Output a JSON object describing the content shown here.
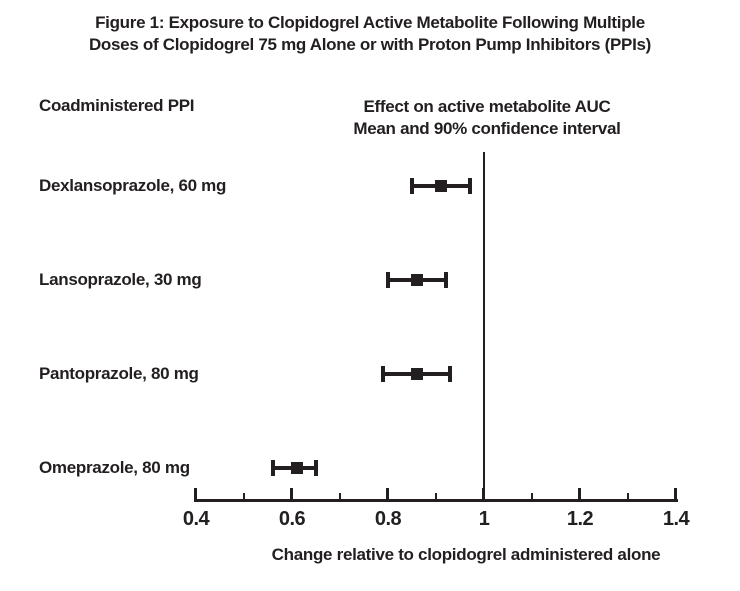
{
  "title": {
    "line1": "Figure 1: Exposure to Clopidogrel Active Metabolite Following Multiple",
    "line2": "Doses of Clopidogrel 75 mg Alone or with Proton Pump Inhibitors (PPIs)"
  },
  "column_headers": {
    "left": "Coadministered PPI",
    "right_line1": "Effect on active metabolite AUC",
    "right_line2": "Mean and 90% confidence interval"
  },
  "chart_data": {
    "type": "scatter",
    "subtype": "forest-plot",
    "categories": [
      "Dexlansoprazole, 60 mg",
      "Lansoprazole, 30 mg",
      "Pantoprazole, 80 mg",
      "Omeprazole, 80 mg"
    ],
    "means": [
      0.91,
      0.86,
      0.86,
      0.61
    ],
    "ci_low": [
      0.85,
      0.8,
      0.79,
      0.56
    ],
    "ci_high": [
      0.97,
      0.92,
      0.93,
      0.65
    ],
    "confidence_level": "90%",
    "reference_value": 1,
    "xlabel": "Change relative to clopidogrel administered alone",
    "xlim": [
      0.4,
      1.4
    ],
    "x_major_ticks": [
      0.4,
      0.6,
      0.8,
      1,
      1.2,
      1.4
    ],
    "x_major_tick_labels": [
      "0.4",
      "0.6",
      "0.8",
      "1",
      "1.2",
      "1.4"
    ],
    "x_minor_ticks": [
      0.5,
      0.7,
      0.9,
      1.1,
      1.3
    ],
    "grid": false,
    "legend": "none",
    "marker": "filled-square",
    "error_bar_caps": true
  },
  "colors": {
    "ink": "#231f20",
    "background": "#ffffff"
  }
}
